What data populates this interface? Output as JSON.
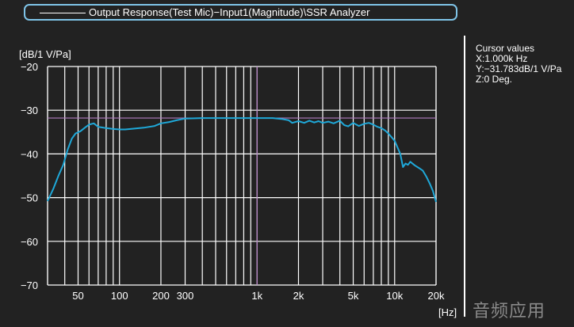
{
  "legend": {
    "series_label": "Output Response(Test Mic)−Input1(Magnitude)\\SSR Analyzer"
  },
  "cursor": {
    "title": "Cursor values",
    "x": "X:1.000k Hz",
    "y": "Y:−31.783dB/1 V/Pa",
    "z": "Z:0 Deg."
  },
  "watermark": "音频应用",
  "colors": {
    "background": "#222222",
    "trace": "#1fa8d8",
    "cursor": "#b07bc0",
    "grid": "#ffffff",
    "legend_border": "#7fc4e8"
  },
  "chart_data": {
    "type": "line",
    "title": "",
    "xlabel": "[Hz]",
    "ylabel": "[dB/1 V/Pa]",
    "x_scale": "log",
    "xlim": [
      30,
      20000
    ],
    "ylim": [
      -70,
      -20
    ],
    "grid": true,
    "x_ticks": [
      {
        "value": 50,
        "label": "50"
      },
      {
        "value": 100,
        "label": "100"
      },
      {
        "value": 200,
        "label": "200"
      },
      {
        "value": 300,
        "label": "300"
      },
      {
        "value": 1000,
        "label": "1k"
      },
      {
        "value": 2000,
        "label": "2k"
      },
      {
        "value": 5000,
        "label": "5k"
      },
      {
        "value": 10000,
        "label": "10k"
      },
      {
        "value": 20000,
        "label": "20k"
      }
    ],
    "y_ticks": [
      {
        "value": -20,
        "label": "−20"
      },
      {
        "value": -30,
        "label": "−30"
      },
      {
        "value": -40,
        "label": "−40"
      },
      {
        "value": -50,
        "label": "−50"
      },
      {
        "value": -60,
        "label": "−60"
      },
      {
        "value": -70,
        "label": "−70"
      }
    ],
    "cursor": {
      "x": 1000,
      "y": -31.783
    },
    "series": [
      {
        "x": [
          30,
          33,
          36,
          39,
          42,
          45,
          48,
          52,
          56,
          60,
          65,
          70,
          80,
          90,
          100,
          110,
          120,
          150,
          180,
          200,
          230,
          260,
          300,
          400,
          500,
          700,
          1000,
          1300,
          1500,
          1700,
          1800,
          2000,
          2200,
          2400,
          2600,
          2800,
          3000,
          3300,
          3600,
          4000,
          4300,
          4600,
          5000,
          5500,
          6000,
          6500,
          7000,
          7500,
          8000,
          8500,
          9000,
          10000,
          11000,
          11500,
          12000,
          12500,
          13000,
          14000,
          15000,
          16000,
          17000,
          18000,
          19000,
          20000
        ],
        "y": [
          -50.8,
          -48.0,
          -45.0,
          -42.5,
          -39.0,
          -36.5,
          -35.3,
          -34.8,
          -34.0,
          -33.3,
          -33.0,
          -33.8,
          -34.1,
          -34.3,
          -34.4,
          -34.4,
          -34.3,
          -34.0,
          -33.6,
          -33.0,
          -32.7,
          -32.3,
          -31.9,
          -31.8,
          -31.8,
          -31.8,
          -31.8,
          -31.8,
          -32.0,
          -32.3,
          -32.9,
          -32.5,
          -32.9,
          -32.4,
          -32.8,
          -32.5,
          -32.9,
          -32.6,
          -33.0,
          -32.4,
          -33.4,
          -33.7,
          -32.9,
          -33.6,
          -33.1,
          -32.9,
          -33.3,
          -33.8,
          -34.1,
          -34.6,
          -35.3,
          -37.0,
          -40.0,
          -43.0,
          -42.2,
          -42.5,
          -41.8,
          -42.6,
          -43.2,
          -43.8,
          -45.2,
          -46.8,
          -48.5,
          -51.0
        ]
      }
    ]
  }
}
